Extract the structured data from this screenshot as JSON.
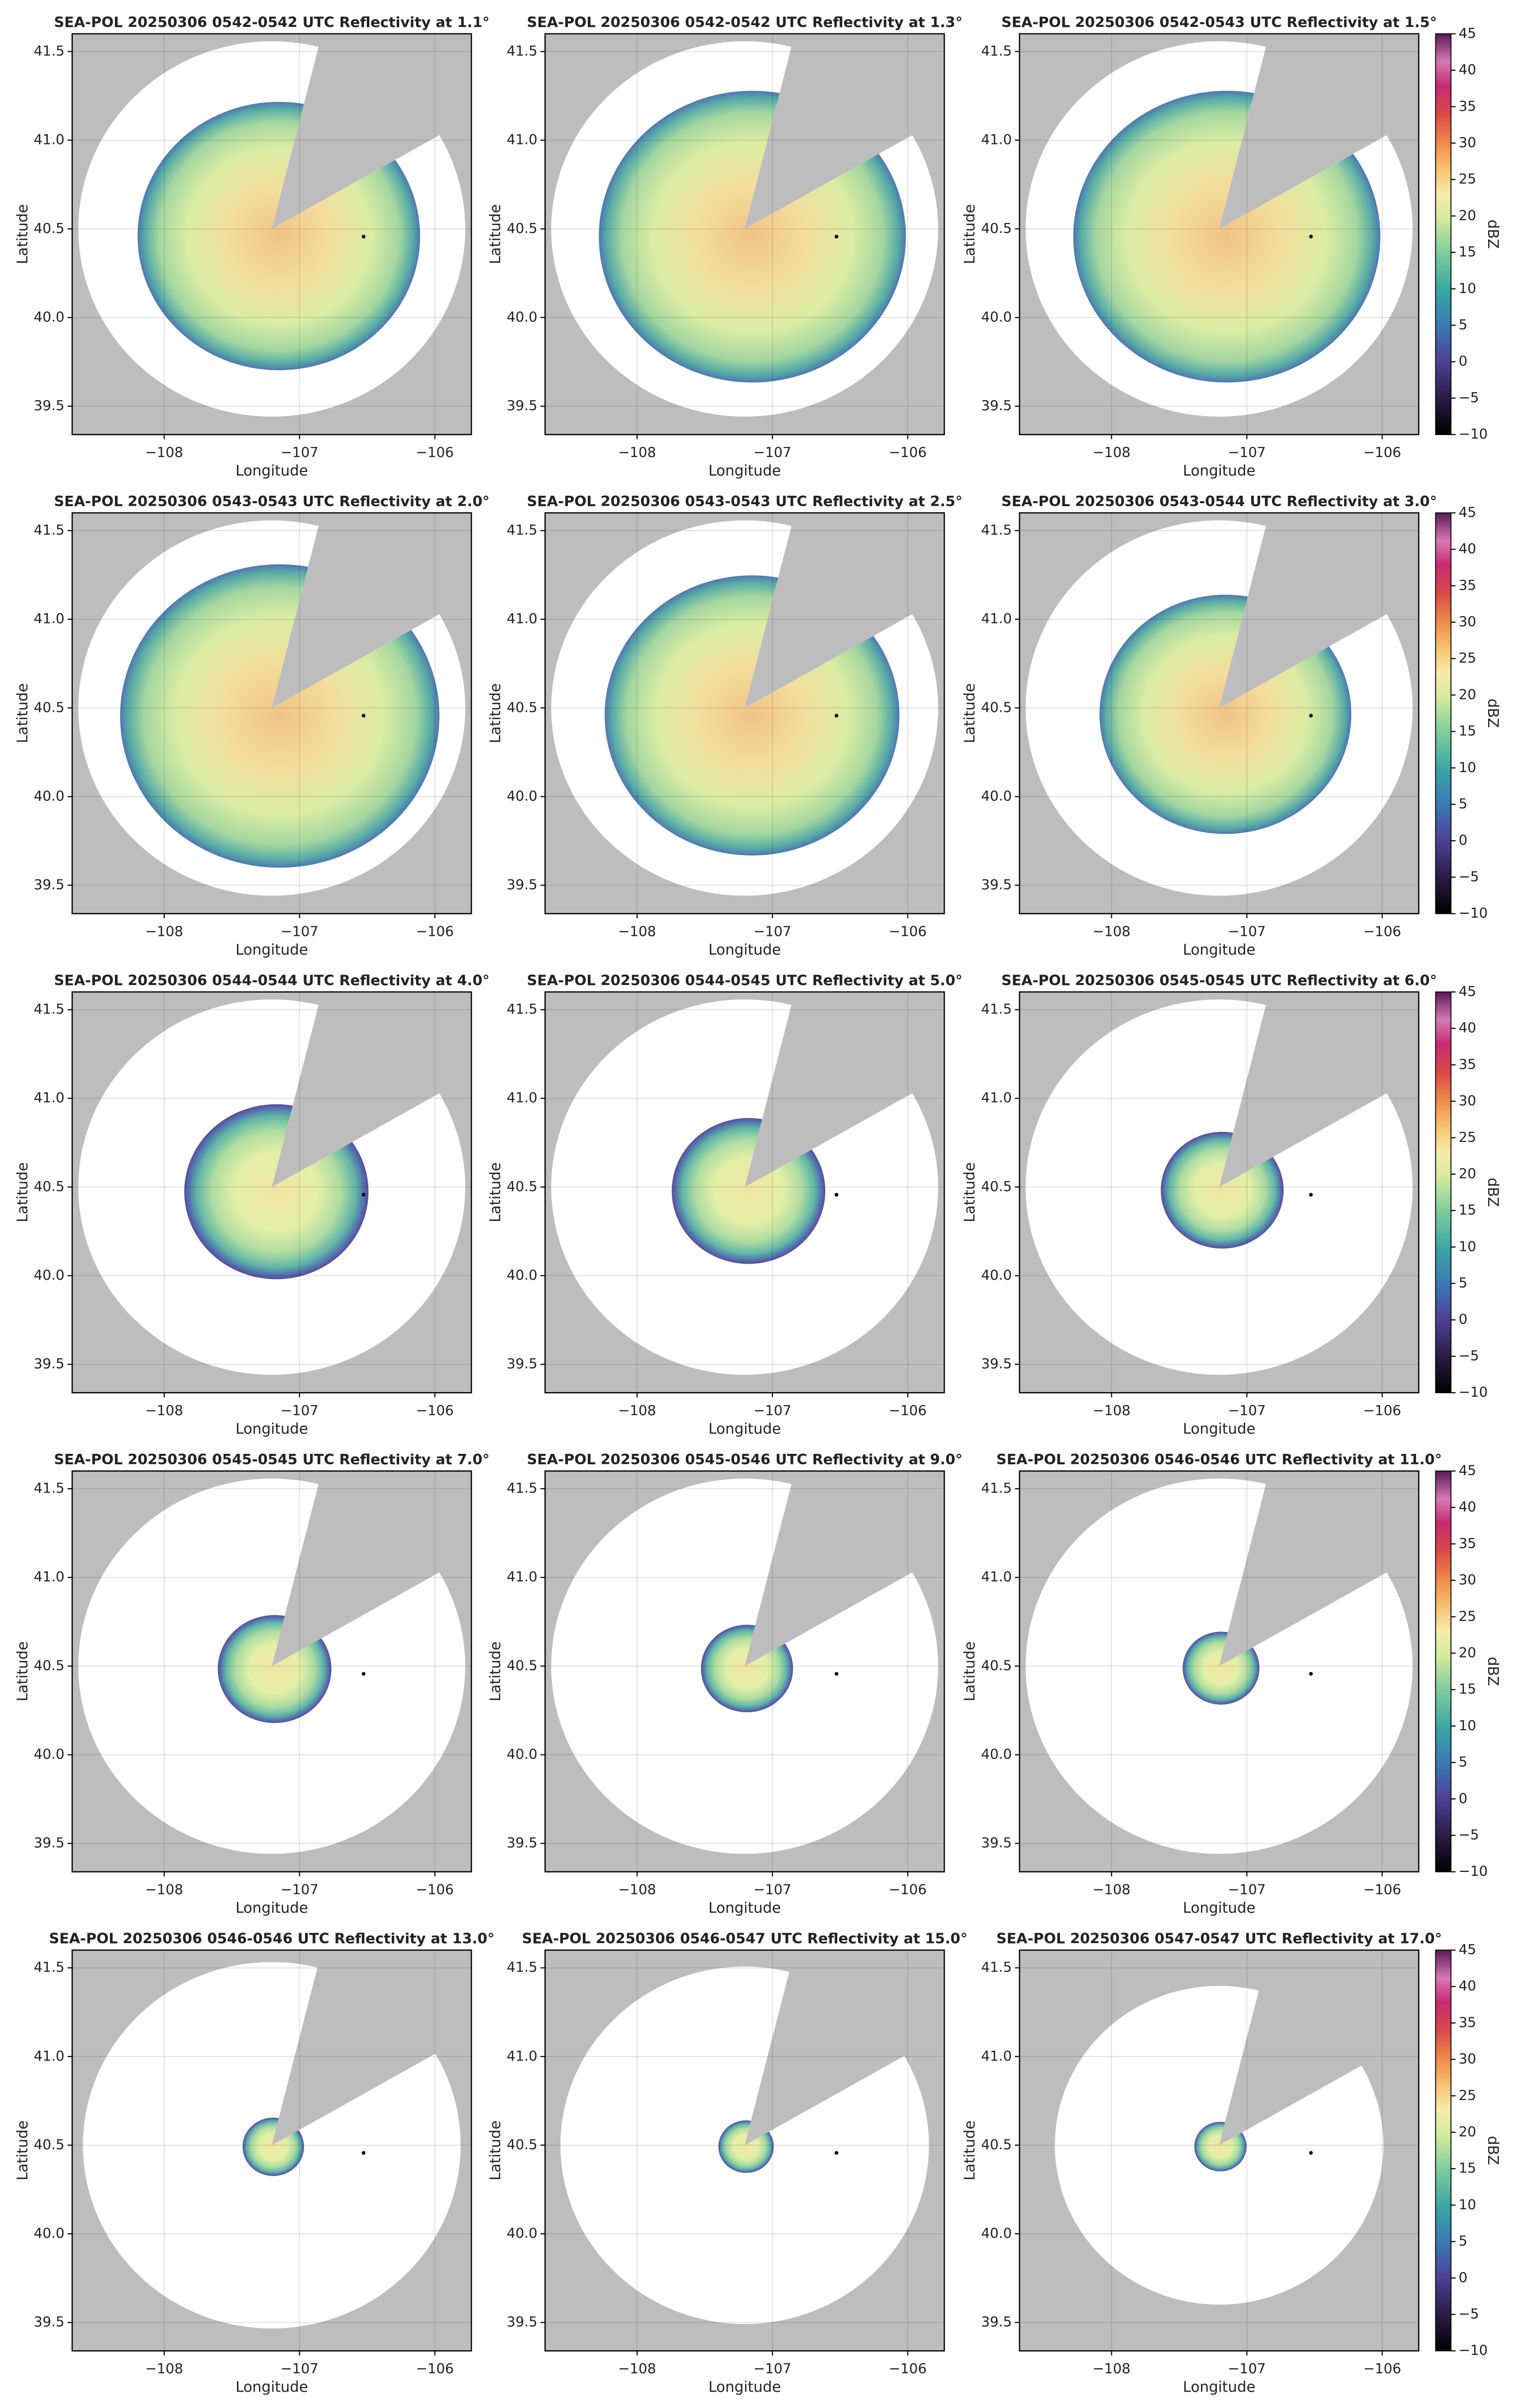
{
  "chart_data": [
    {
      "type": "ppi",
      "title": "SEA-POL 20250306 0542-0542 UTC Reflectivity at 1.1°",
      "xlabel": "Longitude",
      "ylabel": "Latitude",
      "xlim": [
        -108.68,
        -105.73
      ],
      "ylim": [
        39.34,
        41.6
      ],
      "xticks": [
        {
          "value": -108,
          "label": "−108"
        },
        {
          "value": -107,
          "label": "−107"
        },
        {
          "value": -106,
          "label": "−106"
        }
      ],
      "yticks": [
        39.5,
        {
          "value": 40,
          "label": "40.0"
        },
        40.5,
        {
          "value": 41,
          "label": "41.0"
        },
        41.5
      ],
      "grid": true
    },
    {
      "type": "ppi",
      "title": "SEA-POL 20250306 0542-0542 UTC Reflectivity at 1.3°",
      "xlabel": "Longitude",
      "ylabel": "Latitude",
      "xlim": [
        -108.68,
        -105.73
      ],
      "ylim": [
        39.34,
        41.6
      ],
      "xticks": [
        {
          "value": -108,
          "label": "−108"
        },
        {
          "value": -107,
          "label": "−107"
        },
        {
          "value": -106,
          "label": "−106"
        }
      ],
      "yticks": [
        39.5,
        {
          "value": 40,
          "label": "40.0"
        },
        40.5,
        {
          "value": 41,
          "label": "41.0"
        },
        41.5
      ],
      "grid": true
    },
    {
      "type": "ppi",
      "title": "SEA-POL 20250306 0542-0543 UTC Reflectivity at 1.5°",
      "xlabel": "Longitude",
      "ylabel": "Latitude",
      "xlim": [
        -108.68,
        -105.73
      ],
      "ylim": [
        39.34,
        41.6
      ],
      "xticks": [
        {
          "value": -108,
          "label": "−108"
        },
        {
          "value": -107,
          "label": "−107"
        },
        {
          "value": -106,
          "label": "−106"
        }
      ],
      "yticks": [
        39.5,
        {
          "value": 40,
          "label": "40.0"
        },
        40.5,
        {
          "value": 41,
          "label": "41.0"
        },
        41.5
      ],
      "grid": true,
      "colorbar": {
        "label": "dBZ",
        "lim": [
          -10,
          45
        ],
        "ticks": [
          {
            "value": -10,
            "label": "−10"
          },
          {
            "value": -5,
            "label": "−5"
          },
          0,
          5,
          10,
          15,
          20,
          25,
          30,
          35,
          40,
          45
        ]
      }
    },
    {
      "type": "ppi",
      "title": "SEA-POL 20250306 0543-0543 UTC Reflectivity at 2.0°",
      "xlabel": "Longitude",
      "ylabel": "Latitude",
      "xlim": [
        -108.68,
        -105.73
      ],
      "ylim": [
        39.34,
        41.6
      ],
      "xticks": [
        {
          "value": -108,
          "label": "−108"
        },
        {
          "value": -107,
          "label": "−107"
        },
        {
          "value": -106,
          "label": "−106"
        }
      ],
      "yticks": [
        39.5,
        {
          "value": 40,
          "label": "40.0"
        },
        40.5,
        {
          "value": 41,
          "label": "41.0"
        },
        41.5
      ],
      "grid": true
    },
    {
      "type": "ppi",
      "title": "SEA-POL 20250306 0543-0543 UTC Reflectivity at 2.5°",
      "xlabel": "Longitude",
      "ylabel": "Latitude",
      "xlim": [
        -108.68,
        -105.73
      ],
      "ylim": [
        39.34,
        41.6
      ],
      "xticks": [
        {
          "value": -108,
          "label": "−108"
        },
        {
          "value": -107,
          "label": "−107"
        },
        {
          "value": -106,
          "label": "−106"
        }
      ],
      "yticks": [
        39.5,
        {
          "value": 40,
          "label": "40.0"
        },
        40.5,
        {
          "value": 41,
          "label": "41.0"
        },
        41.5
      ],
      "grid": true
    },
    {
      "type": "ppi",
      "title": "SEA-POL 20250306 0543-0544 UTC Reflectivity at 3.0°",
      "xlabel": "Longitude",
      "ylabel": "Latitude",
      "xlim": [
        -108.68,
        -105.73
      ],
      "ylim": [
        39.34,
        41.6
      ],
      "xticks": [
        {
          "value": -108,
          "label": "−108"
        },
        {
          "value": -107,
          "label": "−107"
        },
        {
          "value": -106,
          "label": "−106"
        }
      ],
      "yticks": [
        39.5,
        {
          "value": 40,
          "label": "40.0"
        },
        40.5,
        {
          "value": 41,
          "label": "41.0"
        },
        41.5
      ],
      "grid": true,
      "colorbar": {
        "label": "dBZ",
        "lim": [
          -10,
          45
        ],
        "ticks": [
          {
            "value": -10,
            "label": "−10"
          },
          {
            "value": -5,
            "label": "−5"
          },
          0,
          5,
          10,
          15,
          20,
          25,
          30,
          35,
          40,
          45
        ]
      }
    },
    {
      "type": "ppi",
      "title": "SEA-POL 20250306 0544-0544 UTC Reflectivity at 4.0°",
      "xlabel": "Longitude",
      "ylabel": "Latitude",
      "xlim": [
        -108.68,
        -105.73
      ],
      "ylim": [
        39.34,
        41.6
      ],
      "xticks": [
        {
          "value": -108,
          "label": "−108"
        },
        {
          "value": -107,
          "label": "−107"
        },
        {
          "value": -106,
          "label": "−106"
        }
      ],
      "yticks": [
        39.5,
        {
          "value": 40,
          "label": "40.0"
        },
        40.5,
        {
          "value": 41,
          "label": "41.0"
        },
        41.5
      ],
      "grid": true
    },
    {
      "type": "ppi",
      "title": "SEA-POL 20250306 0544-0545 UTC Reflectivity at 5.0°",
      "xlabel": "Longitude",
      "ylabel": "Latitude",
      "xlim": [
        -108.68,
        -105.73
      ],
      "ylim": [
        39.34,
        41.6
      ],
      "xticks": [
        {
          "value": -108,
          "label": "−108"
        },
        {
          "value": -107,
          "label": "−107"
        },
        {
          "value": -106,
          "label": "−106"
        }
      ],
      "yticks": [
        39.5,
        {
          "value": 40,
          "label": "40.0"
        },
        40.5,
        {
          "value": 41,
          "label": "41.0"
        },
        41.5
      ],
      "grid": true
    },
    {
      "type": "ppi",
      "title": "SEA-POL 20250306 0545-0545 UTC Reflectivity at 6.0°",
      "xlabel": "Longitude",
      "ylabel": "Latitude",
      "xlim": [
        -108.68,
        -105.73
      ],
      "ylim": [
        39.34,
        41.6
      ],
      "xticks": [
        {
          "value": -108,
          "label": "−108"
        },
        {
          "value": -107,
          "label": "−107"
        },
        {
          "value": -106,
          "label": "−106"
        }
      ],
      "yticks": [
        39.5,
        {
          "value": 40,
          "label": "40.0"
        },
        40.5,
        {
          "value": 41,
          "label": "41.0"
        },
        41.5
      ],
      "grid": true,
      "colorbar": {
        "label": "dBZ",
        "lim": [
          -10,
          45
        ],
        "ticks": [
          {
            "value": -10,
            "label": "−10"
          },
          {
            "value": -5,
            "label": "−5"
          },
          0,
          5,
          10,
          15,
          20,
          25,
          30,
          35,
          40,
          45
        ]
      }
    },
    {
      "type": "ppi",
      "title": "SEA-POL 20250306 0545-0545 UTC Reflectivity at 7.0°",
      "xlabel": "Longitude",
      "ylabel": "Latitude",
      "xlim": [
        -108.68,
        -105.73
      ],
      "ylim": [
        39.34,
        41.6
      ],
      "xticks": [
        {
          "value": -108,
          "label": "−108"
        },
        {
          "value": -107,
          "label": "−107"
        },
        {
          "value": -106,
          "label": "−106"
        }
      ],
      "yticks": [
        39.5,
        {
          "value": 40,
          "label": "40.0"
        },
        40.5,
        {
          "value": 41,
          "label": "41.0"
        },
        41.5
      ],
      "grid": true
    },
    {
      "type": "ppi",
      "title": "SEA-POL 20250306 0545-0546 UTC Reflectivity at 9.0°",
      "xlabel": "Longitude",
      "ylabel": "Latitude",
      "xlim": [
        -108.68,
        -105.73
      ],
      "ylim": [
        39.34,
        41.6
      ],
      "xticks": [
        {
          "value": -108,
          "label": "−108"
        },
        {
          "value": -107,
          "label": "−107"
        },
        {
          "value": -106,
          "label": "−106"
        }
      ],
      "yticks": [
        39.5,
        {
          "value": 40,
          "label": "40.0"
        },
        40.5,
        {
          "value": 41,
          "label": "41.0"
        },
        41.5
      ],
      "grid": true
    },
    {
      "type": "ppi",
      "title": "SEA-POL 20250306 0546-0546 UTC Reflectivity at 11.0°",
      "xlabel": "Longitude",
      "ylabel": "Latitude",
      "xlim": [
        -108.68,
        -105.73
      ],
      "ylim": [
        39.34,
        41.6
      ],
      "xticks": [
        {
          "value": -108,
          "label": "−108"
        },
        {
          "value": -107,
          "label": "−107"
        },
        {
          "value": -106,
          "label": "−106"
        }
      ],
      "yticks": [
        39.5,
        {
          "value": 40,
          "label": "40.0"
        },
        40.5,
        {
          "value": 41,
          "label": "41.0"
        },
        41.5
      ],
      "grid": true,
      "colorbar": {
        "label": "dBZ",
        "lim": [
          -10,
          45
        ],
        "ticks": [
          {
            "value": -10,
            "label": "−10"
          },
          {
            "value": -5,
            "label": "−5"
          },
          0,
          5,
          10,
          15,
          20,
          25,
          30,
          35,
          40,
          45
        ]
      }
    },
    {
      "type": "ppi",
      "title": "SEA-POL 20250306 0546-0546 UTC Reflectivity at 13.0°",
      "xlabel": "Longitude",
      "ylabel": "Latitude",
      "xlim": [
        -108.68,
        -105.73
      ],
      "ylim": [
        39.34,
        41.6
      ],
      "xticks": [
        {
          "value": -108,
          "label": "−108"
        },
        {
          "value": -107,
          "label": "−107"
        },
        {
          "value": -106,
          "label": "−106"
        }
      ],
      "yticks": [
        39.5,
        {
          "value": 40,
          "label": "40.0"
        },
        40.5,
        {
          "value": 41,
          "label": "41.0"
        },
        41.5
      ],
      "grid": true
    },
    {
      "type": "ppi",
      "title": "SEA-POL 20250306 0546-0547 UTC Reflectivity at 15.0°",
      "xlabel": "Longitude",
      "ylabel": "Latitude",
      "xlim": [
        -108.68,
        -105.73
      ],
      "ylim": [
        39.34,
        41.6
      ],
      "xticks": [
        {
          "value": -108,
          "label": "−108"
        },
        {
          "value": -107,
          "label": "−107"
        },
        {
          "value": -106,
          "label": "−106"
        }
      ],
      "yticks": [
        39.5,
        {
          "value": 40,
          "label": "40.0"
        },
        40.5,
        {
          "value": 41,
          "label": "41.0"
        },
        41.5
      ],
      "grid": true
    },
    {
      "type": "ppi",
      "title": "SEA-POL 20250306 0547-0547 UTC Reflectivity at 17.0°",
      "xlabel": "Longitude",
      "ylabel": "Latitude",
      "xlim": [
        -108.68,
        -105.73
      ],
      "ylim": [
        39.34,
        41.6
      ],
      "xticks": [
        {
          "value": -108,
          "label": "−108"
        },
        {
          "value": -107,
          "label": "−107"
        },
        {
          "value": -106,
          "label": "−106"
        }
      ],
      "yticks": [
        39.5,
        {
          "value": 40,
          "label": "40.0"
        },
        40.5,
        {
          "value": 41,
          "label": "41.0"
        },
        41.5
      ],
      "grid": true,
      "colorbar": {
        "label": "dBZ",
        "lim": [
          -10,
          45
        ],
        "ticks": [
          {
            "value": -10,
            "label": "−10"
          },
          {
            "value": -5,
            "label": "−5"
          },
          0,
          5,
          10,
          15,
          20,
          25,
          30,
          35,
          40,
          45
        ]
      }
    }
  ]
}
